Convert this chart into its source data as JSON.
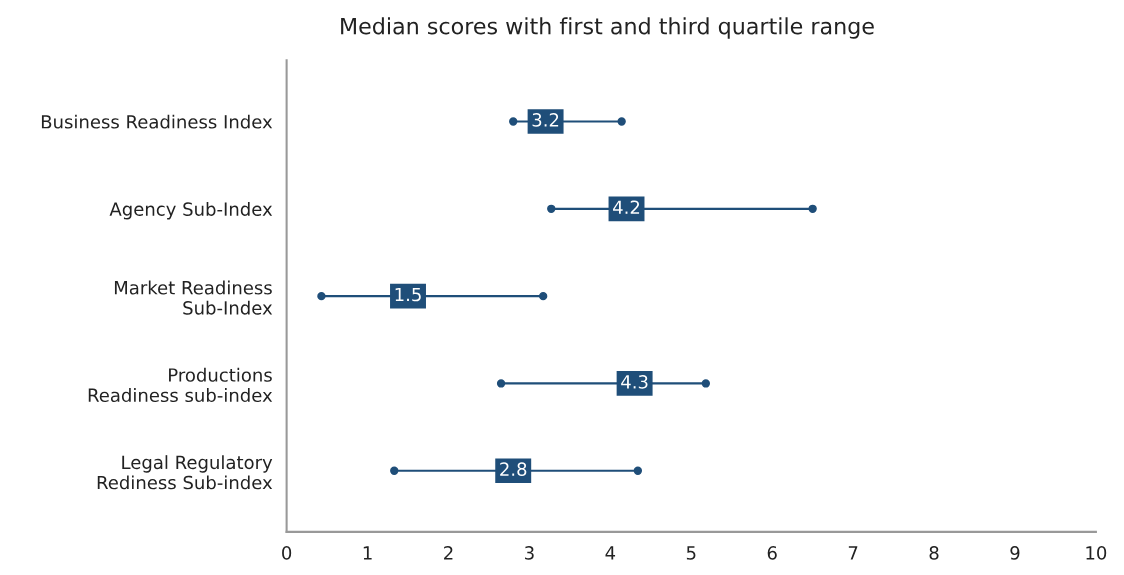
{
  "chart_data": {
    "type": "bar",
    "orientation": "horizontal",
    "title": "Median scores with first and third quartile range",
    "categories": [
      "Business Readiness Index",
      "Agency Sub-Index",
      "Market Readiness\nSub-Index",
      "Productions\nReadiness sub-index",
      "Legal Regulatory\nRediness Sub-index"
    ],
    "series": [
      {
        "color": "#1f4e79",
        "base": [
          2.8,
          3.27,
          0.43,
          2.65,
          1.33
        ],
        "values": [
          1.34,
          3.23,
          2.74,
          2.53,
          3.01
        ]
      },
      {
        "type": "scatter",
        "color": "#1f4e79",
        "marker": "circle",
        "values": [
          2.8,
          3.27,
          0.43,
          2.65,
          1.33
        ]
      },
      {
        "type": "scatter",
        "color": "#1f4e79",
        "marker": "circle",
        "values": [
          4.14,
          6.5,
          3.17,
          5.18,
          4.34
        ]
      },
      {
        "type": "scatter",
        "color": "#1f4e79",
        "marker": "square",
        "values": [
          3.2,
          4.2,
          1.5,
          4.3,
          2.8
        ],
        "value_labels": [
          "3.2",
          "4.2",
          "1.5",
          "4.3",
          "2.8"
        ]
      }
    ],
    "xlim": [
      0,
      10
    ],
    "xticks": [
      0,
      1,
      2,
      3,
      4,
      5,
      6,
      7,
      8,
      9,
      10
    ],
    "grid": false,
    "legend": false
  }
}
